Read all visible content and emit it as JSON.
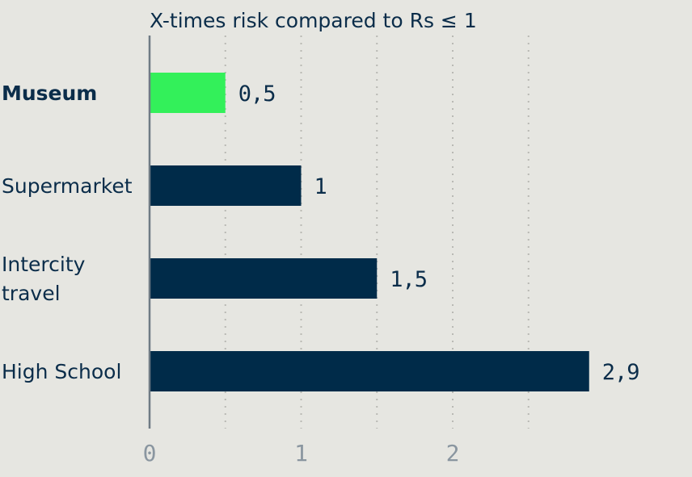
{
  "chart_data": {
    "type": "bar",
    "orientation": "horizontal",
    "title": "X-times risk compared to Rs ≤ 1",
    "categories": [
      "Museum",
      "Supermarket",
      "Intercity travel",
      "High School"
    ],
    "category_lines": [
      [
        "Museum"
      ],
      [
        "Supermarket"
      ],
      [
        "Intercity",
        "travel"
      ],
      [
        "High School"
      ]
    ],
    "values": [
      0.5,
      1,
      1.5,
      2.9
    ],
    "value_labels": [
      "0,5",
      "1",
      "1,5",
      "2,9"
    ],
    "highlight_index": 0,
    "xlim": [
      0,
      2.9
    ],
    "gridlines": [
      0.5,
      1,
      1.5,
      2,
      2.5
    ],
    "x_ticks": [
      0,
      1,
      2
    ],
    "x_tick_labels": [
      "0",
      "1",
      "2"
    ],
    "grid": true,
    "colors": {
      "bar": "#002b49",
      "highlight": "#33f05a",
      "text": "#0b2d4a",
      "tick": "#8a96a0",
      "axis": "#6f7b84",
      "grid": "#b9b9b4",
      "background": "#e6e6e1"
    }
  }
}
